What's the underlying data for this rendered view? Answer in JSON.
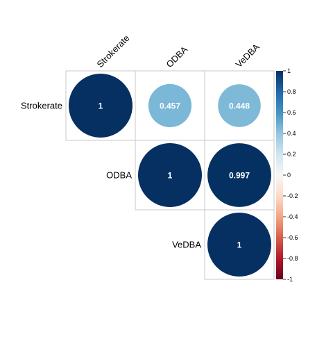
{
  "chart_data": {
    "type": "heatmap",
    "variables": [
      "Strokerate",
      "ODBA",
      "VeDBA"
    ],
    "matrix": [
      [
        1,
        0.457,
        0.448
      ],
      [
        0.457,
        1,
        0.997
      ],
      [
        0.448,
        0.997,
        1
      ]
    ],
    "cells": [
      {
        "row": 0,
        "col": 0,
        "value": 1,
        "label": "1"
      },
      {
        "row": 0,
        "col": 1,
        "value": 0.457,
        "label": "0.457"
      },
      {
        "row": 0,
        "col": 2,
        "value": 0.448,
        "label": "0.448"
      },
      {
        "row": 1,
        "col": 1,
        "value": 1,
        "label": "1"
      },
      {
        "row": 1,
        "col": 2,
        "value": 0.997,
        "label": "0.997"
      },
      {
        "row": 2,
        "col": 2,
        "value": 1,
        "label": "1"
      }
    ],
    "layout": "upper-triangle",
    "glyph": "circle",
    "colorbar": {
      "range": [
        -1,
        1
      ],
      "ticks": [
        "1",
        "0.8",
        "0.6",
        "0.4",
        "0.2",
        "0",
        "-0.2",
        "-0.4",
        "-0.6",
        "-0.8",
        "-1"
      ],
      "placement": "right"
    },
    "colors": {
      "negative_end": "#67001f",
      "zero": "#f7f7f7",
      "positive_end": "#053061",
      "gridline": "#c8c8c8"
    }
  }
}
